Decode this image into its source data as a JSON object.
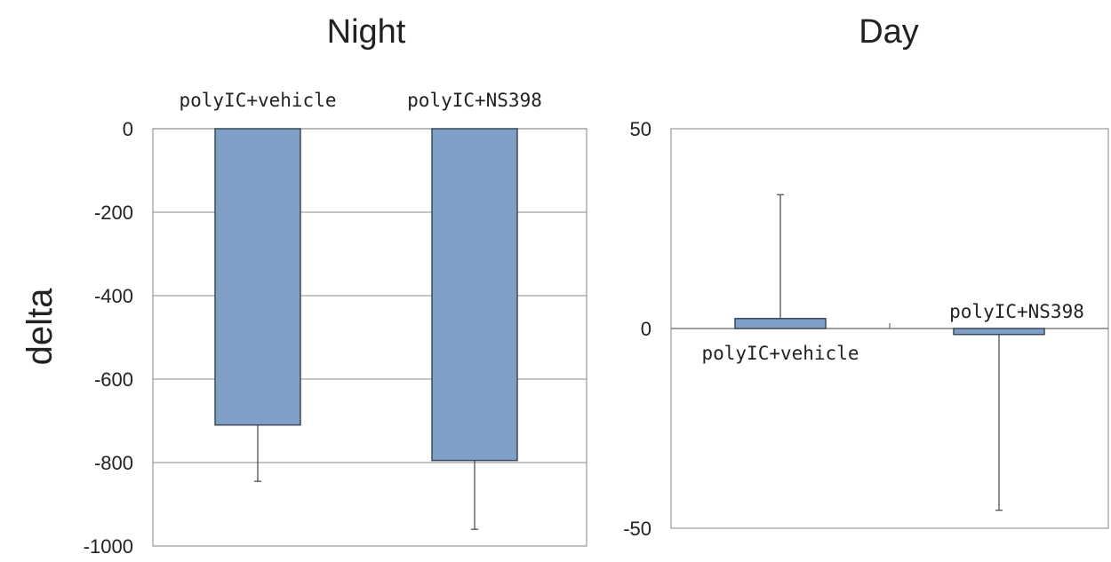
{
  "ylabel": "delta",
  "colors": {
    "bar": "#7f9fc6",
    "bar_edge": "#3a4a5a",
    "grid": "#888888",
    "frame": "#999999"
  },
  "chart_data": [
    {
      "type": "bar",
      "title": "Night",
      "categories": [
        "polyIC+vehicle",
        "polyIC+NS398"
      ],
      "values": [
        -710,
        -795
      ],
      "errors": [
        135,
        165
      ],
      "error_direction": "down",
      "ylim": [
        -1000,
        0
      ],
      "yticks": [
        "0",
        "-200",
        "-400",
        "-600",
        "-800",
        "-1000"
      ],
      "ytick_values": [
        0,
        -200,
        -400,
        -600,
        -800,
        -1000
      ],
      "grid": true,
      "category_labels_position": "top"
    },
    {
      "type": "bar",
      "title": "Day",
      "categories": [
        "polyIC+vehicle",
        "polyIC+NS398"
      ],
      "values": [
        2.5,
        -1.5
      ],
      "errors": [
        31,
        44
      ],
      "error_direction": "away-from-zero",
      "ylim": [
        -50,
        50
      ],
      "yticks": [
        "50",
        "0",
        "-50"
      ],
      "ytick_values": [
        50,
        0,
        -50
      ],
      "grid": false,
      "category_labels_position": "opposite-side-of-zero"
    }
  ]
}
